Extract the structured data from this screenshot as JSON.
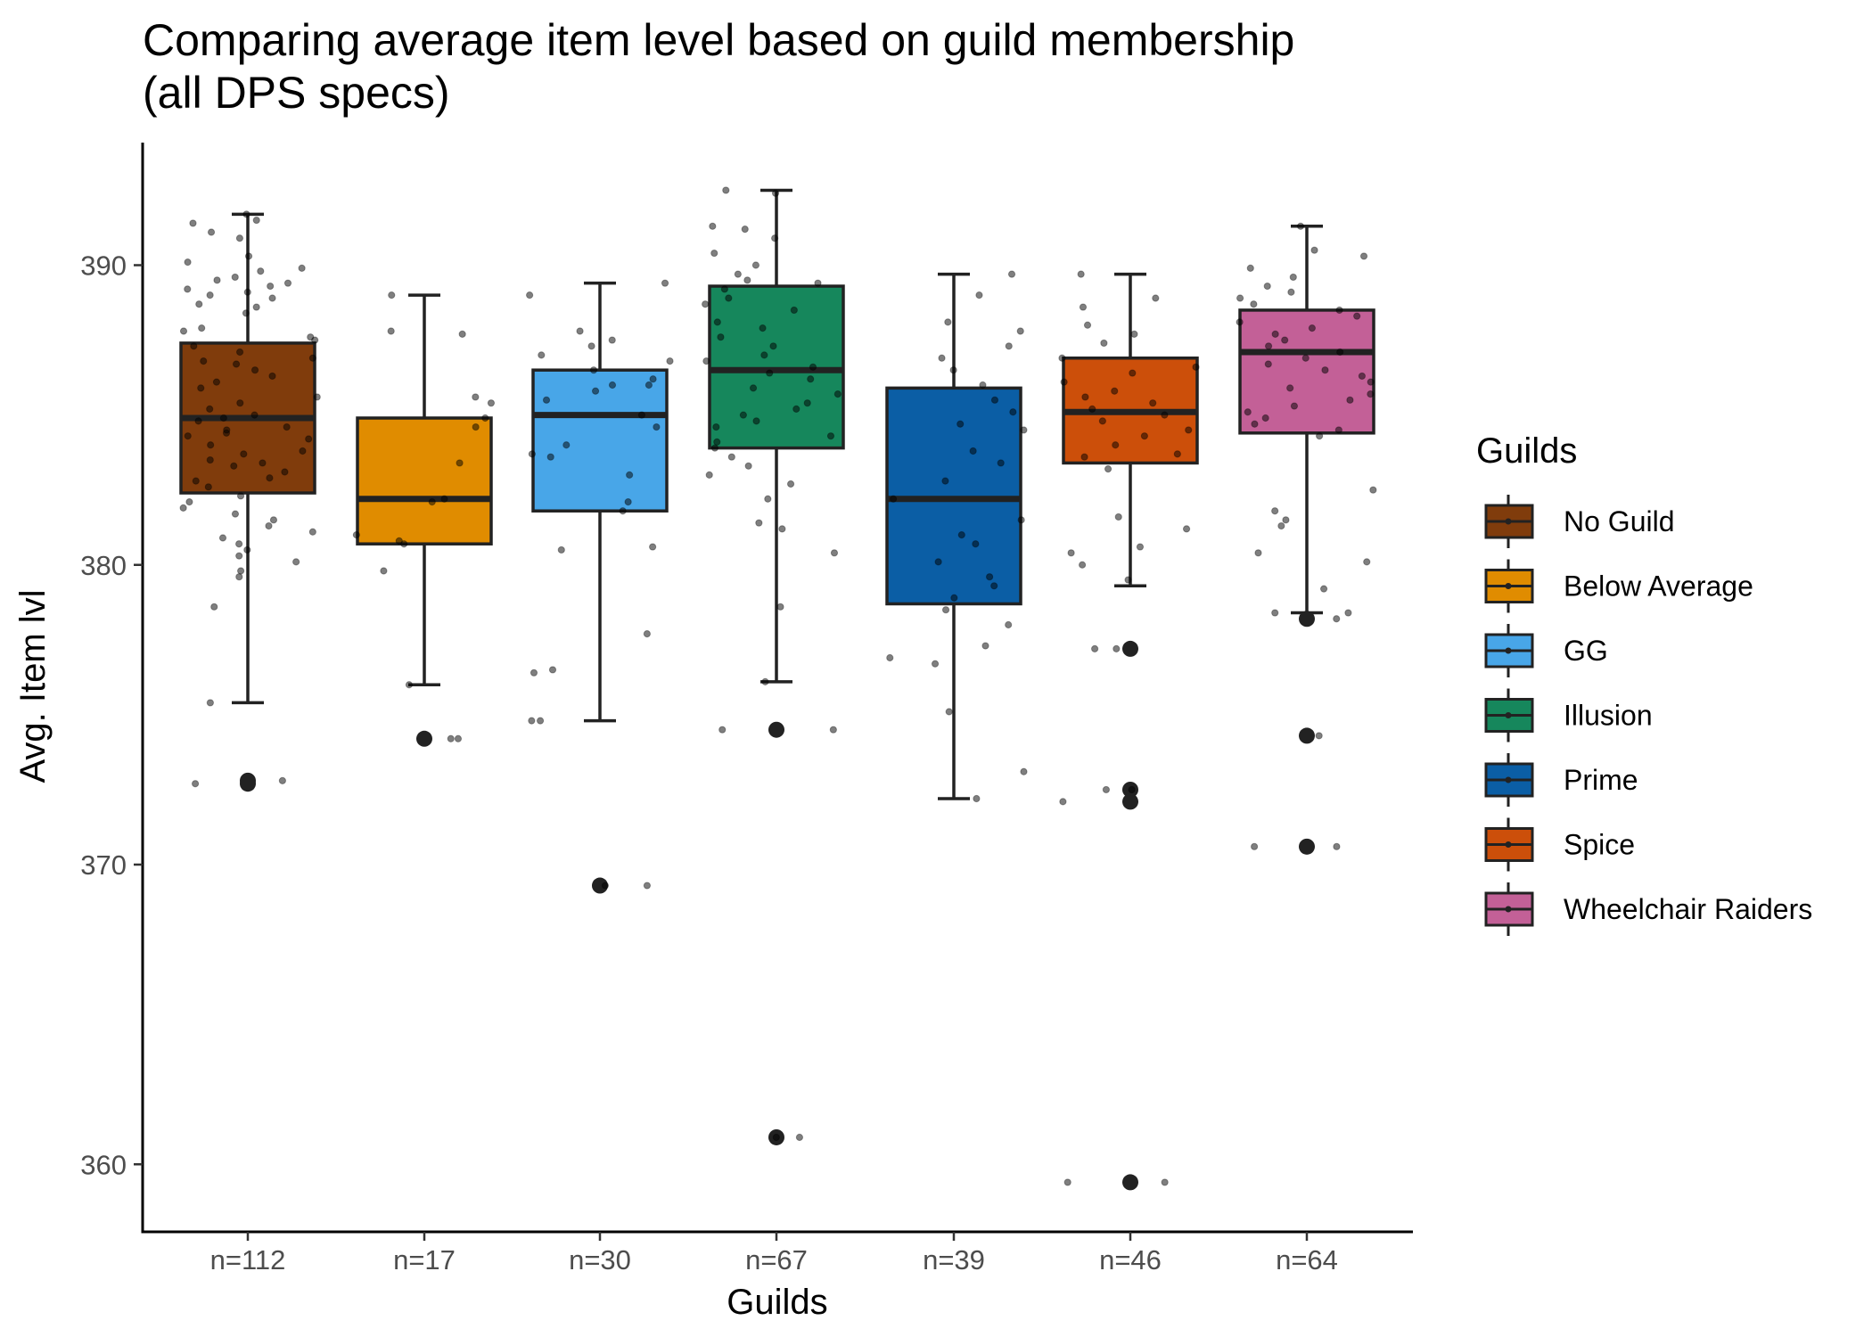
{
  "chart_data": {
    "type": "boxplot",
    "title": "Comparing average item level based on guild membership",
    "subtitle": "(all DPS specs)",
    "xlabel": "Guilds",
    "ylabel": "Avg. Item lvl",
    "ylim": [
      357.8,
      394.2
    ],
    "yticks": [
      360,
      370,
      380,
      390
    ],
    "grid": false,
    "legend": {
      "title": "Guilds",
      "position": "right"
    },
    "categories": [
      "n=112",
      "n=17",
      "n=30",
      "n=67",
      "n=39",
      "n=46",
      "n=64"
    ],
    "series": [
      {
        "name": "No Guild",
        "color": "#803c0c",
        "n": 112,
        "min": 375.4,
        "q1": 382.4,
        "median": 384.9,
        "q3": 387.4,
        "max": 391.7,
        "outliers": [
          372.8,
          372.7
        ],
        "points": [
          391.7,
          391.5,
          391.4,
          391.1,
          390.9,
          390.3,
          390.1,
          389.9,
          389.8,
          389.6,
          389.5,
          389.4,
          389.3,
          389.2,
          389.1,
          389.0,
          388.9,
          388.7,
          388.6,
          388.4,
          387.9,
          387.8,
          387.6,
          387.5,
          387.3,
          387.1,
          386.9,
          386.8,
          386.7,
          386.5,
          386.3,
          386.1,
          385.9,
          385.6,
          385.4,
          385.2,
          385.0,
          384.9,
          384.8,
          384.6,
          384.5,
          384.4,
          384.3,
          384.2,
          384.0,
          383.8,
          383.7,
          383.5,
          383.4,
          383.3,
          383.1,
          382.9,
          382.8,
          382.6,
          382.3,
          382.1,
          381.9,
          381.7,
          381.5,
          381.3,
          381.1,
          380.9,
          380.7,
          380.5,
          380.3,
          380.1,
          379.8,
          379.6,
          378.6,
          375.4,
          372.8,
          372.7
        ]
      },
      {
        "name": "Below Average",
        "color": "#e08c00",
        "n": 17,
        "min": 376.0,
        "q1": 380.7,
        "median": 382.2,
        "q3": 384.9,
        "max": 389.0,
        "outliers": [
          374.2
        ],
        "points": [
          389.0,
          387.7,
          385.6,
          385.4,
          384.9,
          384.6,
          383.4,
          382.2,
          382.1,
          381.0,
          380.8,
          380.7,
          379.8,
          376.0,
          374.2,
          374.2,
          387.8
        ]
      },
      {
        "name": "GG",
        "color": "#48a6e8",
        "n": 30,
        "min": 374.8,
        "q1": 381.8,
        "median": 385.0,
        "q3": 386.5,
        "max": 389.4,
        "outliers": [
          369.3
        ],
        "points": [
          389.4,
          389.0,
          387.8,
          387.5,
          387.3,
          387.0,
          386.8,
          386.5,
          386.2,
          386.0,
          385.8,
          385.5,
          385.0,
          384.6,
          384.0,
          383.7,
          383.6,
          383.0,
          382.1,
          381.8,
          380.6,
          380.5,
          377.7,
          376.5,
          376.4,
          374.8,
          374.8,
          369.3,
          369.3,
          386.0
        ]
      },
      {
        "name": "Illusion",
        "color": "#16875c",
        "n": 67,
        "min": 376.1,
        "q1": 383.9,
        "median": 386.5,
        "q3": 389.3,
        "max": 392.5,
        "outliers": [
          374.5,
          360.9
        ],
        "points": [
          392.5,
          392.4,
          391.3,
          391.2,
          390.9,
          390.4,
          390.0,
          389.7,
          389.5,
          389.4,
          389.2,
          388.9,
          388.7,
          388.5,
          388.1,
          387.9,
          387.6,
          387.3,
          387.0,
          386.8,
          386.6,
          386.4,
          386.2,
          385.9,
          385.7,
          385.4,
          385.2,
          385.0,
          384.8,
          384.6,
          384.3,
          384.1,
          383.9,
          383.6,
          383.3,
          383.0,
          382.7,
          382.2,
          381.4,
          381.2,
          380.4,
          378.6,
          376.1,
          374.5,
          374.5,
          360.9,
          360.9
        ]
      },
      {
        "name": "Prime",
        "color": "#0b5ea5",
        "n": 39,
        "min": 372.2,
        "q1": 378.7,
        "median": 382.2,
        "q3": 385.9,
        "max": 389.7,
        "outliers": [],
        "points": [
          389.7,
          389.0,
          388.1,
          387.8,
          387.3,
          386.9,
          386.5,
          386.0,
          385.5,
          385.1,
          384.7,
          384.5,
          383.8,
          383.4,
          382.8,
          382.2,
          381.5,
          381.0,
          380.7,
          380.1,
          379.6,
          379.3,
          378.9,
          378.5,
          378.0,
          377.3,
          376.9,
          376.7,
          375.1,
          373.1,
          372.2
        ]
      },
      {
        "name": "Spice",
        "color": "#cc4f0a",
        "n": 46,
        "min": 379.3,
        "q1": 383.4,
        "median": 385.1,
        "q3": 386.9,
        "max": 389.7,
        "outliers": [
          377.2,
          372.5,
          372.1,
          359.4
        ],
        "points": [
          389.7,
          388.9,
          388.6,
          388.0,
          387.7,
          387.4,
          386.9,
          386.6,
          386.4,
          386.1,
          385.8,
          385.6,
          385.4,
          385.2,
          385.0,
          384.8,
          384.5,
          384.3,
          384.0,
          383.7,
          383.6,
          383.2,
          381.6,
          381.2,
          380.6,
          380.4,
          380.0,
          379.5,
          377.2,
          377.2,
          372.5,
          372.5,
          372.1,
          359.4,
          359.4
        ]
      },
      {
        "name": "Wheelchair Raiders",
        "color": "#c36097",
        "n": 64,
        "min": 378.4,
        "q1": 384.4,
        "median": 387.1,
        "q3": 388.5,
        "max": 391.3,
        "outliers": [
          378.2,
          374.3,
          370.6
        ],
        "points": [
          391.3,
          390.5,
          390.3,
          389.9,
          389.6,
          389.3,
          389.1,
          388.9,
          388.7,
          388.5,
          388.3,
          388.1,
          387.9,
          387.7,
          387.5,
          387.3,
          387.1,
          386.9,
          386.7,
          386.5,
          386.3,
          386.1,
          385.9,
          385.7,
          385.5,
          385.3,
          385.1,
          384.9,
          384.7,
          384.5,
          384.3,
          382.5,
          381.8,
          381.5,
          381.3,
          380.4,
          380.1,
          379.2,
          378.4,
          378.2,
          378.4,
          374.3,
          370.6,
          370.6
        ]
      }
    ]
  }
}
